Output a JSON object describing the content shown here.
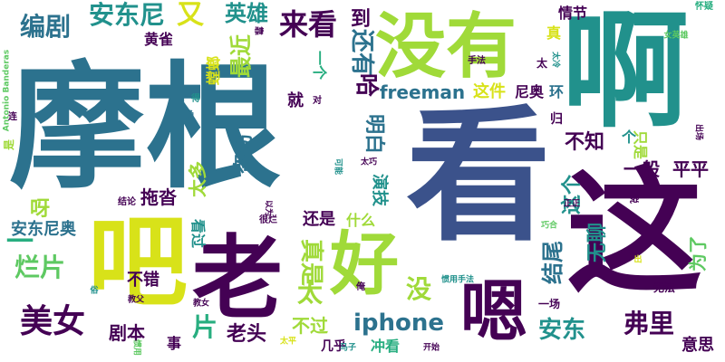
{
  "palette": {
    "dark_purple": "#440154",
    "indigo": "#3b528b",
    "teal_blue": "#2c728e",
    "teal": "#21918c",
    "green": "#28ae80",
    "light_green": "#5ec962",
    "yellow_green": "#a0da39",
    "yellow": "#d8e219",
    "background": "#ffffff"
  },
  "words": [
    {
      "text": "摩根",
      "color": "teal_blue"
    },
    {
      "text": "看",
      "color": "indigo"
    },
    {
      "text": "没有",
      "color": "yellow_green"
    },
    {
      "text": "啊",
      "color": "teal"
    },
    {
      "text": "这",
      "color": "dark_purple"
    },
    {
      "text": "老",
      "color": "dark_purple"
    },
    {
      "text": "吧",
      "color": "yellow"
    },
    {
      "text": "好",
      "color": "yellow_green"
    },
    {
      "text": "嗯",
      "color": "dark_purple"
    },
    {
      "text": "来看",
      "color": "dark_purple"
    },
    {
      "text": "到",
      "color": "dark_purple"
    },
    {
      "text": "安东尼",
      "color": "teal"
    },
    {
      "text": "又",
      "color": "yellow"
    },
    {
      "text": "编剧",
      "color": "teal_blue"
    },
    {
      "text": "英雄",
      "color": "teal"
    },
    {
      "text": "还有",
      "color": "teal_blue"
    },
    {
      "text": "最近",
      "color": "yellow_green"
    },
    {
      "text": "黄雀",
      "color": "dark_purple"
    },
    {
      "text": "螳螂",
      "color": "yellow"
    },
    {
      "text": "一个",
      "color": "green"
    },
    {
      "text": "哈",
      "color": "dark_purple"
    },
    {
      "text": "freeman",
      "color": "teal_blue"
    },
    {
      "text": "这件",
      "color": "yellow"
    },
    {
      "text": "尼奥",
      "color": "dark_purple"
    },
    {
      "text": "环",
      "color": "teal_blue"
    },
    {
      "text": "情节",
      "color": "dark_purple"
    },
    {
      "text": "真",
      "color": "yellow"
    },
    {
      "text": "太",
      "color": "dark_purple"
    },
    {
      "text": "就",
      "color": "dark_purple"
    },
    {
      "text": "明白",
      "color": "teal_blue"
    },
    {
      "text": "归",
      "color": "dark_purple"
    },
    {
      "text": "不知",
      "color": "dark_purple"
    },
    {
      "text": "一般",
      "color": "dark_purple"
    },
    {
      "text": "个",
      "color": "teal"
    },
    {
      "text": "只是",
      "color": "yellow_green"
    },
    {
      "text": "平平",
      "color": "dark_purple"
    },
    {
      "text": "盗窃",
      "color": "teal_blue"
    },
    {
      "text": "太多",
      "color": "yellow_green"
    },
    {
      "text": "演技",
      "color": "teal"
    },
    {
      "text": "这个",
      "color": "teal"
    },
    {
      "text": "无聊",
      "color": "teal"
    },
    {
      "text": "为了",
      "color": "light_green"
    },
    {
      "text": "呀",
      "color": "yellow_green"
    },
    {
      "text": "拖沓",
      "color": "dark_purple"
    },
    {
      "text": "一",
      "color": "green"
    },
    {
      "text": "安东尼奥",
      "color": "teal_blue"
    },
    {
      "text": "看过",
      "color": "teal"
    },
    {
      "text": "还是",
      "color": "dark_purple"
    },
    {
      "text": "什么",
      "color": "yellow_green"
    },
    {
      "text": "真是",
      "color": "yellow_green"
    },
    {
      "text": "结尾",
      "color": "teal_blue"
    },
    {
      "text": "烂片",
      "color": "light_green"
    },
    {
      "text": "太",
      "color": "yellow_green"
    },
    {
      "text": "没",
      "color": "yellow_green"
    },
    {
      "text": "不错",
      "color": "dark_purple"
    },
    {
      "text": "不过",
      "color": "yellow_green"
    },
    {
      "text": "iphone",
      "color": "teal_blue"
    },
    {
      "text": "美女",
      "color": "dark_purple"
    },
    {
      "text": "剧本",
      "color": "dark_purple"
    },
    {
      "text": "片",
      "color": "green"
    },
    {
      "text": "老头",
      "color": "dark_purple"
    },
    {
      "text": "安东",
      "color": "teal"
    },
    {
      "text": "弗里",
      "color": "dark_purple"
    },
    {
      "text": "意思",
      "color": "dark_purple"
    },
    {
      "text": "事",
      "color": "dark_purple"
    },
    {
      "text": "几乎",
      "color": "dark_purple"
    },
    {
      "text": "冲看",
      "color": "green"
    },
    {
      "text": "一场",
      "color": "dark_purple"
    },
    {
      "text": "无法",
      "color": "dark_purple"
    },
    {
      "text": "手法",
      "color": "dark_purple"
    },
    {
      "text": "怀疑",
      "color": "green"
    },
    {
      "text": "女英雄",
      "color": "light_green"
    },
    {
      "text": "太冷",
      "color": "teal"
    },
    {
      "text": "靠",
      "color": "dark_purple"
    },
    {
      "text": "Antonio Banderas",
      "color": "light_green"
    },
    {
      "text": "得",
      "color": "teal"
    },
    {
      "text": "负",
      "color": "teal_blue"
    },
    {
      "text": "对",
      "color": "dark_purple"
    },
    {
      "text": "连",
      "color": "dark_purple"
    },
    {
      "text": "是",
      "color": "yellow_green"
    },
    {
      "text": "太巧",
      "color": "dark_purple"
    },
    {
      "text": "以为",
      "color": "dark_purple"
    },
    {
      "text": "可能",
      "color": "teal"
    },
    {
      "text": "结论",
      "color": "dark_purple"
    },
    {
      "text": "很烂",
      "color": "dark_purple"
    },
    {
      "text": "巧合",
      "color": "light_green"
    },
    {
      "text": "正正",
      "color": "dark_purple"
    },
    {
      "text": "说",
      "color": "dark_purple"
    },
    {
      "text": "出场",
      "color": "dark_purple"
    },
    {
      "text": "出",
      "color": "yellow"
    },
    {
      "text": "惯用手法",
      "color": "teal"
    },
    {
      "text": "俗",
      "color": "teal"
    },
    {
      "text": "教父",
      "color": "dark_purple"
    },
    {
      "text": "教女",
      "color": "dark_purple"
    },
    {
      "text": "俺",
      "color": "dark_purple"
    },
    {
      "text": "太平",
      "color": "yellow"
    },
    {
      "text": "马子",
      "color": "teal"
    },
    {
      "text": "开始",
      "color": "dark_purple"
    },
    {
      "text": "惯用",
      "color": "light_green"
    }
  ]
}
